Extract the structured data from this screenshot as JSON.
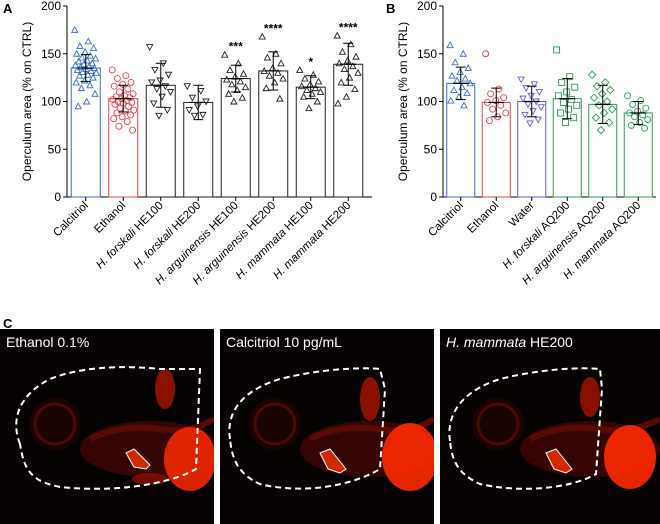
{
  "panel_labels": [
    "A",
    "B",
    "C"
  ],
  "colors": {
    "calcitriol": "#3a6fc4",
    "ethanol": "#e0444a",
    "water": "#6a5acd",
    "extract": "#222222",
    "aqueous": "#2e9c55",
    "fluor_red": "#ff2a00",
    "image_bg": "#070202"
  },
  "chart_data": [
    {
      "id": "A",
      "type": "bar",
      "ylabel": "Operculum area (% on CTRL)",
      "ylim": [
        0,
        200
      ],
      "yticks": [
        0,
        50,
        100,
        150,
        200
      ],
      "error_bars": "SD",
      "points_shown": true,
      "categories": [
        "Calcitriol",
        "Ethanol",
        "H. forskali HE100",
        "H. forskali HE200",
        "H. arguinensis HE100",
        "H. arguinensis HE200",
        "H. mammata HE100",
        "H. mammata HE200"
      ],
      "category_labels": [
        {
          "species": "",
          "suffix": "Calcitriol"
        },
        {
          "species": "",
          "suffix": "Ethanol"
        },
        {
          "species": "H. forskali",
          "suffix": " HE100"
        },
        {
          "species": "H. forskali",
          "suffix": " HE200"
        },
        {
          "species": "H. arguinensis",
          "suffix": " HE100"
        },
        {
          "species": "H. arguinensis",
          "suffix": " HE200"
        },
        {
          "species": "H. mammata",
          "suffix": " HE100"
        },
        {
          "species": "H. mammata",
          "suffix": " HE200"
        }
      ],
      "values": [
        135,
        103,
        117,
        99,
        124,
        132,
        115,
        139
      ],
      "errors": [
        14,
        14,
        23,
        18,
        14,
        20,
        12,
        22
      ],
      "markers": [
        "triangle",
        "circle",
        "triangle-down",
        "triangle-down",
        "triangle",
        "triangle",
        "triangle",
        "triangle"
      ],
      "bar_colors": [
        "#3a6fc4",
        "#e0444a",
        "#222222",
        "#222222",
        "#222222",
        "#222222",
        "#222222",
        "#222222"
      ],
      "significance": [
        "",
        "",
        "",
        "",
        "***",
        "****",
        "*",
        "****"
      ],
      "points": [
        [
          175,
          163,
          158,
          156,
          152,
          150,
          148,
          146,
          145,
          143,
          142,
          140,
          139,
          138,
          137,
          136,
          135,
          134,
          133,
          132,
          131,
          130,
          128,
          127,
          125,
          122,
          120,
          117,
          114,
          108,
          100,
          95
        ],
        [
          133,
          127,
          124,
          120,
          118,
          116,
          113,
          110,
          108,
          106,
          105,
          104,
          103,
          102,
          101,
          100,
          99,
          98,
          97,
          95,
          93,
          91,
          90,
          88,
          86,
          84,
          82,
          79,
          74,
          70
        ],
        [
          157,
          140,
          133,
          128,
          122,
          120,
          116,
          113,
          110,
          105,
          98,
          91,
          85
        ],
        [
          116,
          111,
          104,
          100,
          95,
          91,
          86,
          85
        ],
        [
          149,
          140,
          133,
          129,
          126,
          123,
          121,
          118,
          115,
          112,
          108,
          104,
          100
        ],
        [
          168,
          150,
          146,
          140,
          135,
          132,
          130,
          127,
          124,
          120,
          114,
          103
        ],
        [
          133,
          128,
          124,
          121,
          118,
          116,
          114,
          112,
          110,
          108,
          105,
          100,
          93
        ],
        [
          169,
          160,
          152,
          147,
          143,
          140,
          137,
          134,
          130,
          125,
          120,
          113,
          105,
          98
        ]
      ]
    },
    {
      "id": "B",
      "type": "bar",
      "ylabel": "Operculum area (% on CTRL)",
      "ylim": [
        0,
        200
      ],
      "yticks": [
        0,
        50,
        100,
        150,
        200
      ],
      "error_bars": "SD",
      "points_shown": true,
      "categories": [
        "Calcitriol",
        "Ethanol",
        "Water",
        "H. forskali AQ200",
        "H. arguinensis AQ200",
        "H. mammata AQ200"
      ],
      "category_labels": [
        {
          "species": "",
          "suffix": "Calcitriol"
        },
        {
          "species": "",
          "suffix": "Ethanol"
        },
        {
          "species": "",
          "suffix": "Water"
        },
        {
          "species": "H. forskali",
          "suffix": " AQ200"
        },
        {
          "species": "H. arguinensis",
          "suffix": " AQ200"
        },
        {
          "species": "H. mammata",
          "suffix": " AQ200"
        }
      ],
      "values": [
        119,
        99,
        100,
        103,
        97,
        88
      ],
      "errors": [
        17,
        15,
        16,
        21,
        20,
        12
      ],
      "markers": [
        "triangle",
        "circle",
        "triangle-down",
        "square",
        "diamond",
        "circle"
      ],
      "bar_colors": [
        "#3a6fc4",
        "#e0444a",
        "#6a5acd",
        "#2e9c55",
        "#2e9c55",
        "#2e9c55"
      ],
      "significance": [
        "",
        "",
        "",
        "",
        "",
        ""
      ],
      "points": [
        [
          159,
          150,
          141,
          135,
          131,
          127,
          124,
          122,
          119,
          115,
          112,
          109,
          105,
          101,
          96
        ],
        [
          150,
          113,
          108,
          104,
          101,
          99,
          96,
          92,
          88,
          84,
          80
        ],
        [
          123,
          118,
          114,
          110,
          106,
          103,
          100,
          97,
          94,
          90,
          86,
          81,
          77
        ],
        [
          154,
          126,
          120,
          115,
          110,
          106,
          102,
          99,
          96,
          92,
          88,
          83,
          78
        ],
        [
          128,
          120,
          116,
          112,
          108,
          104,
          100,
          96,
          92,
          88,
          83,
          78,
          70
        ],
        [
          106,
          101,
          97,
          93,
          90,
          88,
          86,
          84,
          81,
          78,
          75,
          72
        ]
      ]
    }
  ],
  "images": [
    {
      "label_prefix": "",
      "label_species": "",
      "label_text": "Ethanol 0.1%"
    },
    {
      "label_prefix": "",
      "label_species": "",
      "label_text": "Calcitriol 10 pg/mL"
    },
    {
      "label_prefix": "",
      "label_species": "H. mammata",
      "label_text": " HE200"
    }
  ]
}
